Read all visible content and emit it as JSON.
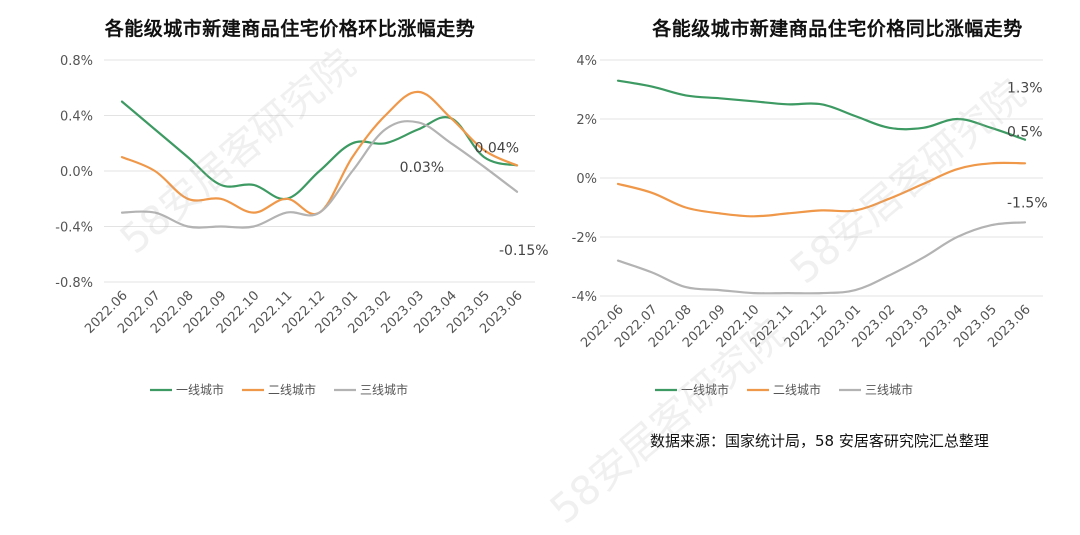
{
  "chart_data": [
    {
      "type": "line",
      "title": "各能级城市新建商品住宅价格环比涨幅走势",
      "xlabel": "",
      "ylabel": "",
      "categories": [
        "2022.06",
        "2022.07",
        "2022.08",
        "2022.09",
        "2022.10",
        "2022.11",
        "2022.12",
        "2023.01",
        "2023.02",
        "2023.03",
        "2023.04",
        "2023.05",
        "2023.06"
      ],
      "ylim": [
        -0.8,
        0.8
      ],
      "yticks": [
        -0.8,
        -0.4,
        0.0,
        0.4,
        0.8
      ],
      "ytick_labels": [
        "-0.8%",
        "-0.4%",
        "0.0%",
        "0.4%",
        "0.8%"
      ],
      "grid": true,
      "series": [
        {
          "name": "一线城市",
          "color": "#3d9a62",
          "values": [
            0.5,
            0.3,
            0.1,
            -0.1,
            -0.1,
            -0.2,
            0.0,
            0.2,
            0.2,
            0.3,
            0.38,
            0.1,
            0.04
          ]
        },
        {
          "name": "二线城市",
          "color": "#f0984a",
          "values": [
            0.1,
            0.0,
            -0.2,
            -0.2,
            -0.3,
            -0.2,
            -0.3,
            0.1,
            0.4,
            0.57,
            0.38,
            0.15,
            0.04
          ]
        },
        {
          "name": "三线城市",
          "color": "#b3b3b3",
          "values": [
            -0.3,
            -0.3,
            -0.4,
            -0.4,
            -0.4,
            -0.3,
            -0.3,
            0.0,
            0.3,
            0.35,
            0.2,
            0.03,
            -0.15
          ]
        }
      ],
      "annotations": [
        {
          "text": "0.04%",
          "category": "2023.06",
          "value": 0.04,
          "series": "二线城市"
        },
        {
          "text": "0.03%",
          "category": "2023.05",
          "value": 0.03,
          "series": "三线城市"
        },
        {
          "text": "-0.15%",
          "category": "2023.06",
          "value": -0.15,
          "series": "三线城市"
        }
      ],
      "legend_position": "bottom"
    },
    {
      "type": "line",
      "title": "各能级城市新建商品住宅价格同比涨幅走势",
      "xlabel": "",
      "ylabel": "",
      "categories": [
        "2022.06",
        "2022.07",
        "2022.08",
        "2022.09",
        "2022.10",
        "2022.11",
        "2022.12",
        "2023.01",
        "2023.02",
        "2023.03",
        "2023.04",
        "2023.05",
        "2023.06"
      ],
      "ylim": [
        -4,
        4
      ],
      "yticks": [
        -4,
        -2,
        0,
        2,
        4
      ],
      "ytick_labels": [
        "-4%",
        "-2%",
        "0%",
        "2%",
        "4%"
      ],
      "grid": true,
      "series": [
        {
          "name": "一线城市",
          "color": "#3d9a62",
          "values": [
            3.3,
            3.1,
            2.8,
            2.7,
            2.6,
            2.5,
            2.5,
            2.1,
            1.7,
            1.7,
            2.0,
            1.7,
            1.3
          ]
        },
        {
          "name": "二线城市",
          "color": "#f0984a",
          "values": [
            -0.2,
            -0.5,
            -1.0,
            -1.2,
            -1.3,
            -1.2,
            -1.1,
            -1.1,
            -0.7,
            -0.2,
            0.3,
            0.5,
            0.5
          ]
        },
        {
          "name": "三线城市",
          "color": "#b3b3b3",
          "values": [
            -2.8,
            -3.2,
            -3.7,
            -3.8,
            -3.9,
            -3.9,
            -3.9,
            -3.8,
            -3.3,
            -2.7,
            -2.0,
            -1.6,
            -1.5
          ]
        }
      ],
      "annotations": [
        {
          "text": "1.3%",
          "category": "2023.06",
          "value": 1.3,
          "series": "一线城市"
        },
        {
          "text": "0.5%",
          "category": "2023.06",
          "value": 0.5,
          "series": "二线城市"
        },
        {
          "text": "-1.5%",
          "category": "2023.06",
          "value": -1.5,
          "series": "三线城市"
        }
      ],
      "legend_position": "bottom"
    }
  ],
  "legend_labels": [
    "一线城市",
    "二线城市",
    "三线城市"
  ],
  "source": "数据来源：国家统计局，58 安居客研究院汇总整理",
  "watermark": "58安居客研究院"
}
